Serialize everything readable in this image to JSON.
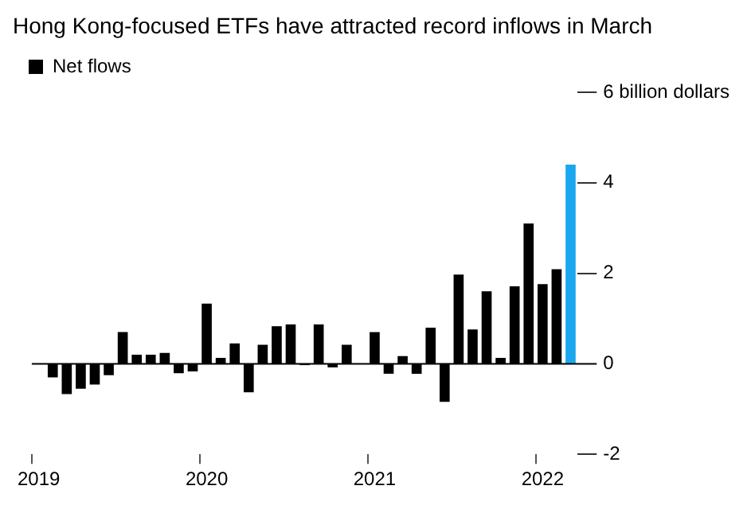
{
  "chart_data": {
    "type": "bar",
    "title": "Hong Kong-focused ETFs have attracted record inflows in March",
    "categories": [
      "2019",
      null,
      null,
      null,
      null,
      null,
      null,
      null,
      null,
      null,
      null,
      null,
      "2020",
      null,
      null,
      null,
      null,
      null,
      null,
      null,
      null,
      null,
      null,
      null,
      "2021",
      null,
      null,
      null,
      null,
      null,
      null,
      null,
      null,
      null,
      null,
      null,
      "2022",
      null,
      null
    ],
    "series": [
      {
        "name": "Net flows",
        "color": "#000000",
        "colors": [
          "#000000",
          "#000000",
          "#000000",
          "#000000",
          "#000000",
          "#000000",
          "#000000",
          "#000000",
          "#000000",
          "#000000",
          "#000000",
          "#000000",
          "#000000",
          "#000000",
          "#000000",
          "#000000",
          "#000000",
          "#000000",
          "#000000",
          "#000000",
          "#000000",
          "#000000",
          "#000000",
          "#000000",
          "#000000",
          "#000000",
          "#000000",
          "#000000",
          "#000000",
          "#000000",
          "#000000",
          "#000000",
          "#000000",
          "#000000",
          "#000000",
          "#000000",
          "#000000",
          "#000000",
          "#1aa7ee"
        ],
        "values": [
          null,
          -0.3,
          -0.67,
          -0.55,
          -0.46,
          -0.25,
          0.7,
          0.2,
          0.2,
          0.24,
          -0.21,
          -0.17,
          1.33,
          0.13,
          0.45,
          -0.63,
          0.42,
          0.83,
          0.87,
          -0.03,
          0.87,
          -0.08,
          0.42,
          null,
          0.7,
          -0.22,
          0.17,
          -0.22,
          0.8,
          -0.84,
          1.97,
          0.76,
          1.6,
          0.13,
          1.71,
          3.1,
          1.76,
          2.09,
          4.4
        ]
      }
    ],
    "ylim": [
      -2,
      6
    ],
    "yticks": [
      -2,
      0,
      2,
      4,
      {
        "value": 6,
        "label": "6 billion dollars"
      }
    ],
    "legend": "top left"
  }
}
